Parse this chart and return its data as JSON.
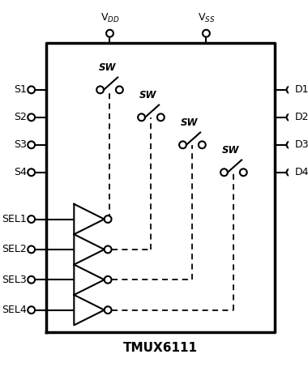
{
  "title": "TMUX6111",
  "vdd_label": "V$_{DD}$",
  "vss_label": "V$_{SS}$",
  "s_labels": [
    "S1",
    "S2",
    "S3",
    "S4"
  ],
  "d_labels": [
    "D1",
    "D2",
    "D3",
    "D4"
  ],
  "sel_labels": [
    "SEL1",
    "SEL2",
    "SEL3",
    "SEL4"
  ],
  "sw_label": "SW",
  "box_color": "#000000",
  "line_color": "#000000",
  "dashed_color": "#000000",
  "bg_color": "#ffffff",
  "figsize": [
    3.8,
    4.53
  ],
  "dpi": 100
}
